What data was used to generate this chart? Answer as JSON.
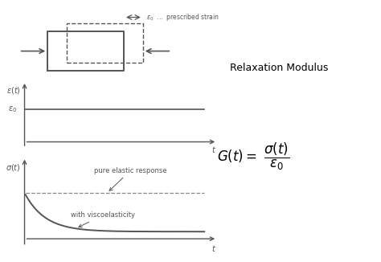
{
  "bg_color": "#ffffff",
  "line_color": "#555555",
  "dashed_color": "#888888",
  "title_relaxation": "Relaxation Modulus",
  "label_elastic": "pure elastic response",
  "label_viscous": "with viscoelasticity",
  "label_prescribed": "ε₀  ...  prescribed strain",
  "elastic_level": 1.8,
  "decay_floor": 0.28,
  "decay_rate": 0.9
}
